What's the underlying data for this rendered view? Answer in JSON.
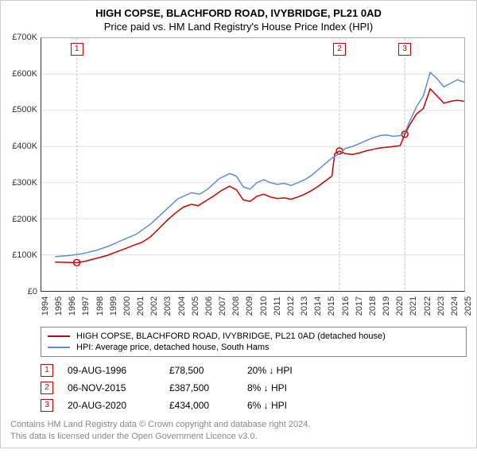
{
  "title1": "HIGH COPSE, BLACHFORD ROAD, IVYBRIDGE, PL21 0AD",
  "title2": "Price paid vs. HM Land Registry's House Price Index (HPI)",
  "chart": {
    "type": "line",
    "background_color": "#ffffff",
    "grid_color": "#e0e0e0",
    "axis_color": "#333333",
    "x": {
      "min": 1994,
      "max": 2025,
      "ticks": [
        1994,
        1995,
        1996,
        1997,
        1998,
        1999,
        2000,
        2001,
        2002,
        2003,
        2004,
        2005,
        2006,
        2007,
        2008,
        2009,
        2010,
        2011,
        2012,
        2013,
        2014,
        2015,
        2016,
        2017,
        2018,
        2019,
        2020,
        2021,
        2022,
        2023,
        2024,
        2025
      ],
      "label_fontsize": 11
    },
    "y": {
      "min": 0,
      "max": 700000,
      "ticks": [
        0,
        100000,
        200000,
        300000,
        400000,
        500000,
        600000,
        700000
      ],
      "tick_labels": [
        "£0",
        "£100K",
        "£200K",
        "£300K",
        "£400K",
        "£500K",
        "£600K",
        "£700K"
      ],
      "label_fontsize": 11
    },
    "series": [
      {
        "name": "HIGH COPSE, BLACHFORD ROAD, IVYBRIDGE, PL21 0AD (detached house)",
        "color": "#cc0000",
        "line_width": 1.5,
        "points": [
          [
            1995.0,
            80000
          ],
          [
            1996.6,
            78500
          ],
          [
            1997.2,
            82000
          ],
          [
            1998.0,
            90000
          ],
          [
            1998.8,
            98000
          ],
          [
            1999.5,
            108000
          ],
          [
            2000.2,
            118000
          ],
          [
            2000.8,
            127000
          ],
          [
            2001.4,
            135000
          ],
          [
            2002.0,
            150000
          ],
          [
            2002.6,
            172000
          ],
          [
            2003.2,
            195000
          ],
          [
            2003.8,
            215000
          ],
          [
            2004.4,
            232000
          ],
          [
            2005.0,
            240000
          ],
          [
            2005.5,
            236000
          ],
          [
            2006.0,
            248000
          ],
          [
            2006.6,
            262000
          ],
          [
            2007.2,
            278000
          ],
          [
            2007.8,
            290000
          ],
          [
            2008.3,
            280000
          ],
          [
            2008.8,
            252000
          ],
          [
            2009.3,
            248000
          ],
          [
            2009.8,
            262000
          ],
          [
            2010.3,
            268000
          ],
          [
            2010.8,
            260000
          ],
          [
            2011.3,
            256000
          ],
          [
            2011.8,
            258000
          ],
          [
            2012.3,
            254000
          ],
          [
            2012.8,
            260000
          ],
          [
            2013.3,
            268000
          ],
          [
            2013.8,
            278000
          ],
          [
            2014.3,
            290000
          ],
          [
            2014.8,
            304000
          ],
          [
            2015.3,
            318000
          ],
          [
            2015.5,
            380000
          ],
          [
            2015.85,
            387500
          ],
          [
            2016.3,
            380000
          ],
          [
            2016.8,
            378000
          ],
          [
            2017.3,
            382000
          ],
          [
            2017.8,
            388000
          ],
          [
            2018.3,
            392000
          ],
          [
            2018.8,
            396000
          ],
          [
            2019.3,
            398000
          ],
          [
            2019.8,
            400000
          ],
          [
            2020.3,
            402000
          ],
          [
            2020.64,
            434000
          ],
          [
            2021.0,
            460000
          ],
          [
            2021.5,
            490000
          ],
          [
            2022.0,
            505000
          ],
          [
            2022.5,
            560000
          ],
          [
            2023.0,
            540000
          ],
          [
            2023.5,
            520000
          ],
          [
            2024.0,
            525000
          ],
          [
            2024.5,
            528000
          ],
          [
            2025.0,
            525000
          ]
        ]
      },
      {
        "name": "HPI: Average price, detached house, South Hams",
        "color": "#5b8fd6",
        "line_width": 1.5,
        "points": [
          [
            1995.0,
            95000
          ],
          [
            1996.0,
            98000
          ],
          [
            1997.0,
            103000
          ],
          [
            1998.0,
            112000
          ],
          [
            1999.0,
            125000
          ],
          [
            2000.0,
            142000
          ],
          [
            2001.0,
            158000
          ],
          [
            2002.0,
            185000
          ],
          [
            2003.0,
            220000
          ],
          [
            2004.0,
            255000
          ],
          [
            2005.0,
            272000
          ],
          [
            2005.6,
            268000
          ],
          [
            2006.2,
            282000
          ],
          [
            2007.0,
            310000
          ],
          [
            2007.8,
            325000
          ],
          [
            2008.3,
            318000
          ],
          [
            2008.8,
            288000
          ],
          [
            2009.3,
            282000
          ],
          [
            2009.8,
            300000
          ],
          [
            2010.3,
            308000
          ],
          [
            2010.8,
            300000
          ],
          [
            2011.3,
            295000
          ],
          [
            2011.8,
            298000
          ],
          [
            2012.3,
            292000
          ],
          [
            2012.8,
            300000
          ],
          [
            2013.3,
            308000
          ],
          [
            2013.8,
            320000
          ],
          [
            2014.3,
            336000
          ],
          [
            2014.8,
            352000
          ],
          [
            2015.3,
            368000
          ],
          [
            2015.85,
            380000
          ],
          [
            2016.3,
            395000
          ],
          [
            2016.8,
            400000
          ],
          [
            2017.3,
            408000
          ],
          [
            2017.8,
            416000
          ],
          [
            2018.3,
            424000
          ],
          [
            2018.8,
            430000
          ],
          [
            2019.3,
            432000
          ],
          [
            2019.8,
            428000
          ],
          [
            2020.3,
            430000
          ],
          [
            2020.64,
            438000
          ],
          [
            2021.0,
            470000
          ],
          [
            2021.5,
            510000
          ],
          [
            2022.0,
            540000
          ],
          [
            2022.5,
            605000
          ],
          [
            2023.0,
            588000
          ],
          [
            2023.5,
            565000
          ],
          [
            2024.0,
            575000
          ],
          [
            2024.5,
            585000
          ],
          [
            2025.0,
            578000
          ]
        ]
      }
    ],
    "event_lines": {
      "color": "#cccccc",
      "line_width": 1.2,
      "dash": "3,2"
    },
    "events": [
      {
        "num": "1",
        "x": 1996.6,
        "date": "09-AUG-1996",
        "price": "£78,500",
        "delta": "20% ↓ HPI"
      },
      {
        "num": "2",
        "x": 2015.85,
        "date": "06-NOV-2015",
        "price": "£387,500",
        "delta": "8% ↓ HPI"
      },
      {
        "num": "3",
        "x": 2020.64,
        "date": "20-AUG-2020",
        "price": "£434,000",
        "delta": "6% ↓ HPI"
      }
    ],
    "event_dot_fill": "#ffffff",
    "event_dot_stroke": "#cc0000",
    "event_dot_radius": 4
  },
  "legend": {
    "items": [
      {
        "color": "#cc0000",
        "label": "HIGH COPSE, BLACHFORD ROAD, IVYBRIDGE, PL21 0AD (detached house)"
      },
      {
        "color": "#5b8fd6",
        "label": "HPI: Average price, detached house, South Hams"
      }
    ]
  },
  "footer": {
    "line1": "Contains HM Land Registry data © Crown copyright and database right 2024.",
    "line2": "This data is licensed under the Open Government Licence v3.0."
  }
}
